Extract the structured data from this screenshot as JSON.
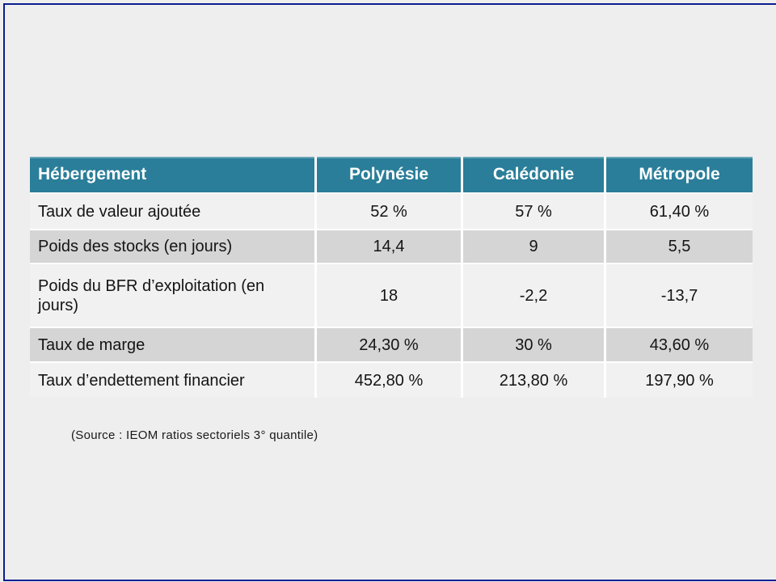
{
  "slide": {
    "background_color": "#eeeeee",
    "border_color": "#0a1e90",
    "header_color": "#2a7e99",
    "row_colors": [
      "#f1f1f1",
      "#d5d5d5"
    ]
  },
  "chart_data": {
    "type": "table",
    "title": "Hébergement",
    "columns": [
      "Polynésie",
      "Calédonie",
      "Métropole"
    ],
    "rows": [
      {
        "label": "Taux de valeur ajoutée",
        "values": [
          "52 %",
          "57 %",
          "61,40 %"
        ]
      },
      {
        "label": "Poids des stocks (en jours)",
        "values": [
          "14,4",
          "9",
          "5,5"
        ]
      },
      {
        "label": "Poids du BFR d’exploitation (en jours)",
        "values": [
          "18",
          "-2,2",
          "-13,7"
        ]
      },
      {
        "label": "Taux de marge",
        "values": [
          "24,30 %",
          "30 %",
          "43,60 %"
        ]
      },
      {
        "label": "Taux d’endettement financier",
        "values": [
          "452,80 %",
          "213,80 %",
          "197,90 %"
        ]
      }
    ],
    "source_note": "(Source : IEOM ratios sectoriels 3° quantile)",
    "layout": {
      "header_text_color": "#ffffff",
      "body_text_color": "#141414",
      "value_alignment": "center",
      "label_alignment": "left"
    }
  }
}
